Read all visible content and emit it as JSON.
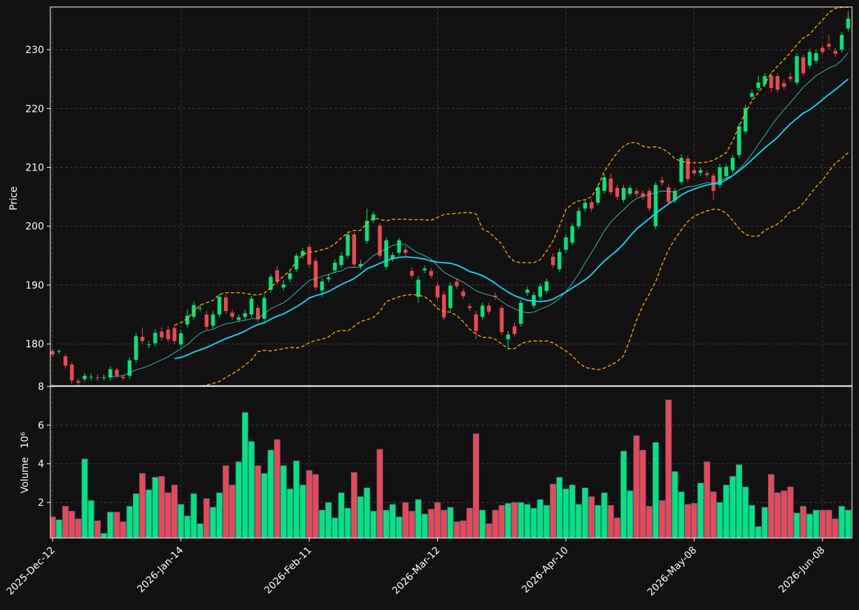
{
  "chart_data": {
    "type": "candlestick",
    "categories": [
      "2025-Dec-12",
      null,
      null,
      null,
      null,
      null,
      null,
      null,
      null,
      null,
      null,
      null,
      null,
      null,
      null,
      null,
      null,
      null,
      null,
      null,
      "2026-Jan-14",
      null,
      null,
      null,
      null,
      null,
      null,
      null,
      null,
      null,
      null,
      null,
      null,
      null,
      null,
      null,
      null,
      null,
      null,
      null,
      "2026-Feb-11",
      null,
      null,
      null,
      null,
      null,
      null,
      null,
      null,
      null,
      null,
      null,
      null,
      null,
      null,
      null,
      null,
      null,
      null,
      null,
      "2026-Mar-12",
      null,
      null,
      null,
      null,
      null,
      null,
      null,
      null,
      null,
      null,
      null,
      null,
      null,
      null,
      null,
      null,
      null,
      null,
      null,
      "2026-Apr-10",
      null,
      null,
      null,
      null,
      null,
      null,
      null,
      null,
      null,
      null,
      null,
      null,
      null,
      null,
      null,
      null,
      null,
      null,
      null,
      "2026-May-08",
      null,
      null,
      null,
      null,
      null,
      null,
      null,
      null,
      null,
      null,
      null,
      null,
      null,
      null,
      null,
      null,
      null,
      null,
      null,
      "2026-Jun-08",
      null,
      null,
      null,
      null
    ],
    "open": [
      178.8,
      178.7,
      177.9,
      176.5,
      173.7,
      174.0,
      174.3,
      174.3,
      174.2,
      174.3,
      175.6,
      174.4,
      174.6,
      177.3,
      181.2,
      179.8,
      180.1,
      182.1,
      182.4,
      182.7,
      179.9,
      183.3,
      184.6,
      186.0,
      185.0,
      183.1,
      185.0,
      187.9,
      185.3,
      184.1,
      184.6,
      185.0,
      186.1,
      184.3,
      189.2,
      192.5,
      189.6,
      191.0,
      192.7,
      195.0,
      196.5,
      194.1,
      189.1,
      191.0,
      192.5,
      193.4,
      195.0,
      198.6,
      193.2,
      197.5,
      201.0,
      200.1,
      193.1,
      194.5,
      195.5,
      196.0,
      192.4,
      188.0,
      192.5,
      192.4,
      189.9,
      188.4,
      186.1,
      190.6,
      188.9,
      186.4,
      185.0,
      184.6,
      186.5,
      188.2,
      186.1,
      180.8,
      183.0,
      183.4,
      188.7,
      186.5,
      188.0,
      189.0,
      194.8,
      192.7,
      196.0,
      197.2,
      200.0,
      203.0,
      204.1,
      204.0,
      206.0,
      208.1,
      206.5,
      204.5,
      205.5,
      206.0,
      205.6,
      206.0,
      200.0,
      207.8,
      206.6,
      204.4,
      207.5,
      211.5,
      209.5,
      209.1,
      209.0,
      208.6,
      207.0,
      208.5,
      209.5,
      212.1,
      216.1,
      222.0,
      223.5,
      224.1,
      225.6,
      225.5,
      224.3,
      225.4,
      224.4,
      228.7,
      227.3,
      228.1,
      230.3,
      231.0,
      229.8,
      230.0,
      233.6
    ],
    "high": [
      179.2,
      179.1,
      178.3,
      176.9,
      174.2,
      175.1,
      175.0,
      174.8,
      174.8,
      176.2,
      176.0,
      174.8,
      177.7,
      181.9,
      182.8,
      180.5,
      182.5,
      182.8,
      183.0,
      183.3,
      182.4,
      185.9,
      187.2,
      186.7,
      185.7,
      185.6,
      188.5,
      188.4,
      185.9,
      185.0,
      185.8,
      188.2,
      186.6,
      188.3,
      191.9,
      193.2,
      190.8,
      192.6,
      195.4,
      196.3,
      197.0,
      194.6,
      191.2,
      191.9,
      194.4,
      195.6,
      199.2,
      199.0,
      194.3,
      203.0,
      202.5,
      200.6,
      198.1,
      195.6,
      198.0,
      196.6,
      193.0,
      191.5,
      193.3,
      192.9,
      190.4,
      188.9,
      190.5,
      191.2,
      189.4,
      186.9,
      185.6,
      187.0,
      187.0,
      188.7,
      186.6,
      182.2,
      183.6,
      187.5,
      189.7,
      188.8,
      190.3,
      191.1,
      195.4,
      196.2,
      198.6,
      200.5,
      203.2,
      204.5,
      204.6,
      207.1,
      208.8,
      209.0,
      207.0,
      207.0,
      207.0,
      206.5,
      206.1,
      206.5,
      207.5,
      208.4,
      207.1,
      206.5,
      212.2,
      212.0,
      210.0,
      210.0,
      209.5,
      209.1,
      210.6,
      210.6,
      212.1,
      217.5,
      220.6,
      223.2,
      225.6,
      226.0,
      226.1,
      226.0,
      225.0,
      226.1,
      229.4,
      229.2,
      230.1,
      230.0,
      230.8,
      232.5,
      230.3,
      233.0,
      236.5
    ],
    "low": [
      177.8,
      178.3,
      175.8,
      173.2,
      173.0,
      173.6,
      173.8,
      173.7,
      173.8,
      173.8,
      174.1,
      173.8,
      174.1,
      176.8,
      180.0,
      179.3,
      179.6,
      180.6,
      180.3,
      180.0,
      179.4,
      182.8,
      184.1,
      185.5,
      182.4,
      182.6,
      184.5,
      185.1,
      184.1,
      183.6,
      184.1,
      184.5,
      183.7,
      183.8,
      188.7,
      190.1,
      189.1,
      190.5,
      192.2,
      194.5,
      193.0,
      189.1,
      188.0,
      190.5,
      192.0,
      192.9,
      194.5,
      193.0,
      192.7,
      197.0,
      200.5,
      194.5,
      192.6,
      194.0,
      195.0,
      195.0,
      191.1,
      187.0,
      192.0,
      191.1,
      187.4,
      184.0,
      185.6,
      189.3,
      187.6,
      185.6,
      180.8,
      184.1,
      185.0,
      187.5,
      181.5,
      179.0,
      181.2,
      182.9,
      188.2,
      186.0,
      187.5,
      188.5,
      192.9,
      192.2,
      195.5,
      196.7,
      199.5,
      202.5,
      202.5,
      203.5,
      205.5,
      205.3,
      204.5,
      204.0,
      205.0,
      205.0,
      204.5,
      202.5,
      199.5,
      206.9,
      203.6,
      203.9,
      207.0,
      207.5,
      208.5,
      208.6,
      208.2,
      204.5,
      206.5,
      208.0,
      209.0,
      211.6,
      215.6,
      221.5,
      223.0,
      223.6,
      222.8,
      222.7,
      223.2,
      224.5,
      223.9,
      225.5,
      226.8,
      227.6,
      229.1,
      230.0,
      228.8,
      229.5,
      233.1
    ],
    "close": [
      178.2,
      178.8,
      176.3,
      173.8,
      173.4,
      174.6,
      174.4,
      174.2,
      174.3,
      175.7,
      174.6,
      174.2,
      177.2,
      181.3,
      180.5,
      179.9,
      181.9,
      181.1,
      180.8,
      180.5,
      181.8,
      184.8,
      186.6,
      186.1,
      182.9,
      185.0,
      188.0,
      185.6,
      184.6,
      184.5,
      185.2,
      187.7,
      184.2,
      187.8,
      191.4,
      190.6,
      190.1,
      192.0,
      195.0,
      195.8,
      193.5,
      189.6,
      190.6,
      191.3,
      193.8,
      195.0,
      198.6,
      193.5,
      193.6,
      200.9,
      202.0,
      195.0,
      197.6,
      195.1,
      197.6,
      195.5,
      191.6,
      190.9,
      192.8,
      191.6,
      187.9,
      184.5,
      189.9,
      189.8,
      188.1,
      186.1,
      182.2,
      186.5,
      185.5,
      188.0,
      182.0,
      181.6,
      181.7,
      187.0,
      189.2,
      188.3,
      189.8,
      190.6,
      193.4,
      195.6,
      198.1,
      200.0,
      202.6,
      204.0,
      203.0,
      206.6,
      208.3,
      205.8,
      205.0,
      206.5,
      206.5,
      205.5,
      205.0,
      203.0,
      207.0,
      207.4,
      204.1,
      206.0,
      211.6,
      208.0,
      209.0,
      209.5,
      208.7,
      206.0,
      210.0,
      210.1,
      211.6,
      217.0,
      220.1,
      222.6,
      224.4,
      225.5,
      223.5,
      223.2,
      223.7,
      225.0,
      228.9,
      226.0,
      229.6,
      229.4,
      229.6,
      230.5,
      229.3,
      232.5,
      235.3
    ],
    "up_color": "#00e67a",
    "down_color": "#ef4650",
    "series": [
      {
        "color": "#40e0d0",
        "width": 0.8,
        "dashed": false,
        "values": [
          null,
          null,
          null,
          null,
          null,
          null,
          null,
          null,
          null,
          174.4,
          174.5,
          174.6,
          175.1,
          175.6,
          175.9,
          176.3,
          176.8,
          177.3,
          177.8,
          178.5,
          179.2,
          179.9,
          180.9,
          181.8,
          182.3,
          182.5,
          183.0,
          183.4,
          183.6,
          183.9,
          184.0,
          184.3,
          184.3,
          185.1,
          186.0,
          186.5,
          187.0,
          187.8,
          188.8,
          189.8,
          190.8,
          191.1,
          191.5,
          191.8,
          192.2,
          192.4,
          193.0,
          193.0,
          193.1,
          194.0,
          195.0,
          195.6,
          196.2,
          196.7,
          197.0,
          196.9,
          196.1,
          195.4,
          195.0,
          194.4,
          193.3,
          192.2,
          191.6,
          191.0,
          190.5,
          189.8,
          189.0,
          188.6,
          188.3,
          188.0,
          187.2,
          186.5,
          186.0,
          185.5,
          185.3,
          185.4,
          185.9,
          186.3,
          186.9,
          187.7,
          188.9,
          190.3,
          191.9,
          193.8,
          195.5,
          197.3,
          199.2,
          200.7,
          201.8,
          202.8,
          203.9,
          204.7,
          205.1,
          205.4,
          205.7,
          206.0,
          205.9,
          205.8,
          206.3,
          206.7,
          206.8,
          207.1,
          207.4,
          207.3,
          207.7,
          208.2,
          208.6,
          209.7,
          210.8,
          212.3,
          213.9,
          215.4,
          217.0,
          218.5,
          219.8,
          221.0,
          222.3,
          223.6,
          224.6,
          225.6,
          226.2,
          226.9,
          227.3,
          228.2,
          229.5
        ]
      },
      {
        "color": "#00e5ff",
        "width": 1.8,
        "dashed": false,
        "values": [
          null,
          null,
          null,
          null,
          null,
          null,
          null,
          null,
          null,
          null,
          null,
          null,
          null,
          null,
          null,
          null,
          null,
          null,
          null,
          177.5,
          177.7,
          178.1,
          178.6,
          179.0,
          179.4,
          179.9,
          180.4,
          180.9,
          181.3,
          181.7,
          182.2,
          182.8,
          183.3,
          183.6,
          184.2,
          184.7,
          185.1,
          185.7,
          186.3,
          187.0,
          187.8,
          188.2,
          188.5,
          188.9,
          189.5,
          190.1,
          190.6,
          191.1,
          191.9,
          192.8,
          193.2,
          193.7,
          194.1,
          194.5,
          194.7,
          194.8,
          194.7,
          194.6,
          194.4,
          194.1,
          193.9,
          193.8,
          193.7,
          193.4,
          192.9,
          192.3,
          192.0,
          191.6,
          191.0,
          190.3,
          189.5,
          188.8,
          188.2,
          187.8,
          187.4,
          187.3,
          187.2,
          187.3,
          187.6,
          188.2,
          188.8,
          189.5,
          190.2,
          190.9,
          191.8,
          193.0,
          194.1,
          195.0,
          195.9,
          197.0,
          198.3,
          199.5,
          200.4,
          201.3,
          202.2,
          203.0,
          203.8,
          204.5,
          205.3,
          205.9,
          206.3,
          206.7,
          207.0,
          207.2,
          207.3,
          207.9,
          208.6,
          209.4,
          210.3,
          211.3,
          212.3,
          213.3,
          214.2,
          215.1,
          216.3,
          217.4,
          218.3,
          219.2,
          219.8,
          220.6,
          221.5,
          222.4,
          223.2,
          224.1,
          225.0
        ]
      },
      {
        "color": "#ffa500",
        "width": 1.4,
        "dashed": true,
        "values": [
          null,
          null,
          null,
          null,
          null,
          null,
          null,
          null,
          null,
          null,
          null,
          null,
          null,
          null,
          null,
          null,
          null,
          null,
          null,
          183.2,
          183.6,
          184.3,
          185.5,
          186.6,
          187.0,
          187.4,
          188.4,
          188.7,
          188.7,
          188.7,
          188.6,
          188.4,
          188.3,
          188.6,
          189.6,
          190.6,
          191.5,
          192.5,
          194.0,
          195.2,
          195.6,
          195.7,
          196.0,
          196.3,
          197.0,
          198.0,
          198.9,
          199.3,
          199.3,
          200.5,
          201.4,
          201.2,
          200.9,
          201.2,
          201.2,
          201.2,
          201.1,
          201.1,
          201.1,
          201.0,
          201.5,
          202.0,
          202.1,
          202.2,
          202.3,
          202.3,
          202.1,
          199.5,
          199.0,
          198.0,
          197.0,
          195.0,
          194.0,
          193.8,
          193.8,
          193.8,
          194.3,
          195.8,
          197.5,
          200.0,
          202.8,
          203.8,
          204.3,
          204.5,
          205.0,
          206.8,
          209.3,
          211.0,
          212.5,
          213.6,
          214.2,
          214.2,
          213.6,
          213.4,
          213.5,
          213.2,
          212.5,
          211.5,
          211.0,
          210.8,
          210.8,
          210.8,
          210.9,
          211.2,
          211.8,
          212.5,
          214.5,
          217.0,
          219.3,
          221.3,
          222.7,
          224.2,
          226.0,
          227.2,
          228.3,
          229.5,
          230.8,
          232.0,
          232.6,
          233.9,
          235.0,
          236.3,
          237.0,
          237.2,
          237.2
        ]
      },
      {
        "color": "#ffa500",
        "width": 1.4,
        "dashed": true,
        "values": [
          null,
          null,
          null,
          null,
          null,
          null,
          null,
          null,
          null,
          null,
          null,
          null,
          null,
          null,
          null,
          null,
          null,
          null,
          null,
          171.8,
          171.8,
          172.0,
          172.3,
          172.8,
          173.0,
          173.3,
          173.6,
          174.3,
          174.9,
          175.6,
          176.4,
          177.3,
          178.7,
          178.9,
          178.8,
          179.0,
          179.2,
          179.4,
          179.3,
          179.6,
          180.2,
          180.6,
          180.8,
          181.2,
          182.0,
          182.3,
          182.2,
          183.0,
          183.8,
          184.1,
          184.5,
          185.5,
          187.2,
          187.6,
          188.0,
          188.3,
          188.4,
          188.3,
          188.0,
          187.2,
          186.0,
          185.5,
          185.4,
          184.8,
          183.8,
          182.5,
          181.7,
          181.1,
          181.1,
          180.8,
          180.0,
          179.2,
          179.2,
          180.0,
          180.4,
          180.5,
          180.5,
          180.5,
          180.2,
          179.5,
          178.8,
          178.0,
          176.8,
          176.0,
          175.8,
          175.6,
          175.9,
          176.4,
          177.0,
          178.0,
          180.8,
          184.0,
          186.5,
          188.5,
          190.6,
          193.5,
          196.0,
          197.8,
          199.4,
          200.8,
          201.7,
          202.2,
          202.6,
          202.9,
          202.8,
          202.2,
          201.0,
          199.6,
          198.6,
          198.3,
          198.3,
          199.3,
          199.8,
          200.4,
          201.3,
          202.5,
          202.8,
          203.9,
          205.3,
          206.7,
          207.8,
          209.3,
          210.7,
          211.5,
          212.5
        ]
      }
    ],
    "ylabel": "Price",
    "ylim": [
      172.9,
      237.25
    ],
    "yticks": [
      180,
      190,
      200,
      210,
      220,
      230
    ],
    "grid": true,
    "volume": {
      "ylabel": "Volume",
      "scale_label": "10⁶",
      "ylim": [
        0.16,
        8
      ],
      "yticks": [
        2,
        4,
        6,
        8
      ],
      "values": [
        1.25,
        1.1,
        1.8,
        1.55,
        1.15,
        4.25,
        2.1,
        1.05,
        0.4,
        1.5,
        1.5,
        1.0,
        1.8,
        2.45,
        3.5,
        2.65,
        3.3,
        3.35,
        2.5,
        2.9,
        1.9,
        1.3,
        2.45,
        0.9,
        2.2,
        1.75,
        2.5,
        3.9,
        2.9,
        4.1,
        6.65,
        5.15,
        3.9,
        3.5,
        4.7,
        5.25,
        3.9,
        2.7,
        4.15,
        2.9,
        3.65,
        3.45,
        1.6,
        2.0,
        1.2,
        2.5,
        1.7,
        3.55,
        2.3,
        2.75,
        1.55,
        4.75,
        1.6,
        1.9,
        1.25,
        2.0,
        1.55,
        2.15,
        1.4,
        1.65,
        2.0,
        1.6,
        1.75,
        1.0,
        1.05,
        1.7,
        5.55,
        1.6,
        0.9,
        1.6,
        1.85,
        1.95,
        2.0,
        2.0,
        1.9,
        1.7,
        2.15,
        1.85,
        2.95,
        3.3,
        2.7,
        2.9,
        1.9,
        2.75,
        2.3,
        1.85,
        2.5,
        1.85,
        1.2,
        4.65,
        2.6,
        5.45,
        4.7,
        1.8,
        5.1,
        2.1,
        7.3,
        3.6,
        2.55,
        1.9,
        1.95,
        3.0,
        4.1,
        2.55,
        2.0,
        2.9,
        3.35,
        3.95,
        2.8,
        1.85,
        0.75,
        1.75,
        3.45,
        2.5,
        2.6,
        2.8,
        1.45,
        1.8,
        1.4,
        1.6,
        1.6,
        1.6,
        1.15,
        1.8,
        1.6
      ]
    }
  }
}
